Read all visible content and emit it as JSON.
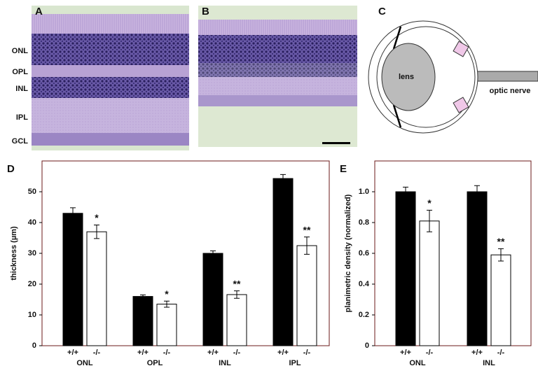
{
  "panel_labels": [
    "A",
    "B",
    "C",
    "D",
    "E"
  ],
  "retina_layers": [
    "ONL",
    "OPL",
    "INL",
    "IPL",
    "GCL"
  ],
  "diagram": {
    "lens": "lens",
    "optic_nerve": "optic nerve"
  },
  "chart_data": [
    {
      "type": "bar",
      "y_label": "thickness (µm)",
      "categories": [
        "ONL",
        "OPL",
        "INL",
        "IPL"
      ],
      "series": [
        {
          "name": "+/+",
          "color": "#000000",
          "values": [
            43,
            16,
            30,
            54.3
          ],
          "errors": [
            1.8,
            0.5,
            0.8,
            1.3
          ]
        },
        {
          "name": "-/-",
          "color": "#ffffff",
          "values": [
            37,
            13.5,
            16.6,
            32.5
          ],
          "errors": [
            2.2,
            1,
            1.2,
            2.8
          ],
          "annotations": [
            "*",
            "*",
            "**",
            "**"
          ]
        }
      ],
      "ylim": [
        0,
        60
      ],
      "yticks": [
        0,
        10,
        20,
        30,
        40,
        50
      ]
    },
    {
      "type": "bar",
      "y_label": "planimetric density (normalized)",
      "categories": [
        "ONL",
        "INL"
      ],
      "series": [
        {
          "name": "+/+",
          "color": "#000000",
          "values": [
            1.0,
            1.0
          ],
          "errors": [
            0.03,
            0.04
          ]
        },
        {
          "name": "-/-",
          "color": "#ffffff",
          "values": [
            0.81,
            0.59
          ],
          "errors": [
            0.07,
            0.04
          ],
          "annotations": [
            "*",
            "**"
          ]
        }
      ],
      "ylim": [
        0,
        1.2
      ],
      "yticks": [
        0,
        0.2,
        0.4,
        0.6,
        0.8,
        {
          "value": 1,
          "label": "1.0"
        }
      ]
    }
  ]
}
